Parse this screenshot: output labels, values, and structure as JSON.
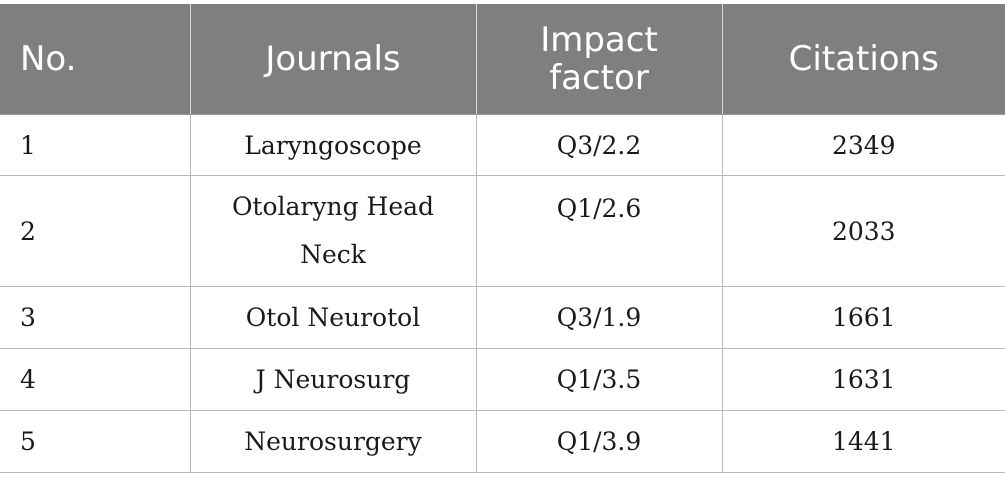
{
  "table": {
    "headers": {
      "no": "No.",
      "journals": "Journals",
      "impact_factor": "Impact factor",
      "citations": "Citations"
    },
    "rows": [
      {
        "no": "1",
        "journal": "Laryngoscope",
        "impact_factor": "Q3/2.2",
        "citations": "2349"
      },
      {
        "no": "2",
        "journal": "Otolaryng Head Neck",
        "impact_factor": "Q1/2.6",
        "citations": "2033"
      },
      {
        "no": "3",
        "journal": "Otol Neurotol",
        "impact_factor": "Q3/1.9",
        "citations": "1661"
      },
      {
        "no": "4",
        "journal": "J Neurosurg",
        "impact_factor": "Q1/3.5",
        "citations": "1631"
      },
      {
        "no": "5",
        "journal": "Neurosurgery",
        "impact_factor": "Q1/3.9",
        "citations": "1441"
      }
    ]
  },
  "colors": {
    "header_bg": "#7f7f7f",
    "header_text": "#ffffff",
    "body_text": "#1a1a1a",
    "rule": "#b9b9b9"
  }
}
